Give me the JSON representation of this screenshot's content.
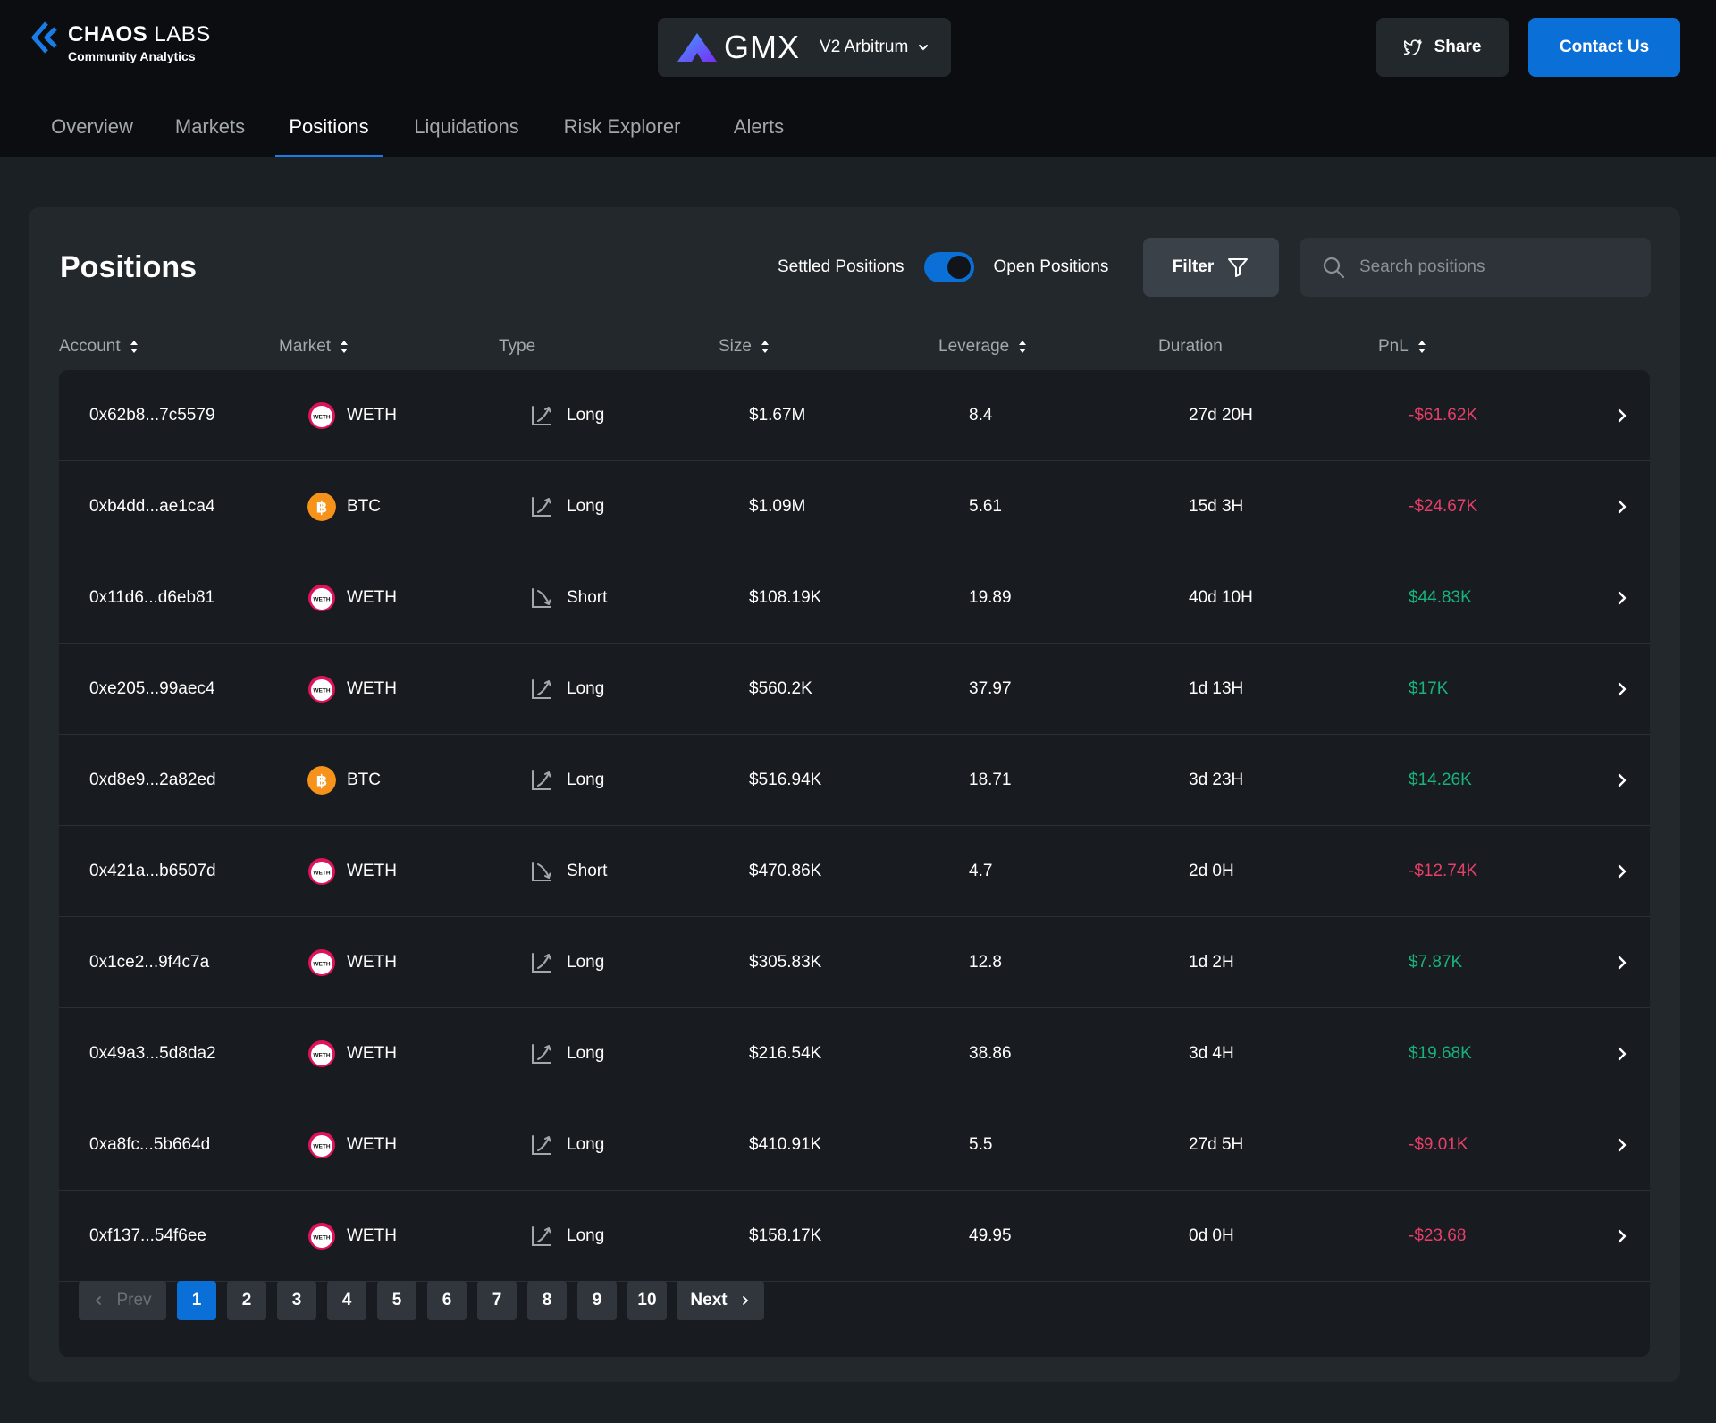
{
  "brand": {
    "title_bold": "CHAOS",
    "title_light": "LABS",
    "subtitle": "Community Analytics"
  },
  "protocol": {
    "name": "GMX",
    "network": "V2 Arbitrum"
  },
  "header": {
    "share_label": "Share",
    "contact_label": "Contact Us"
  },
  "nav": {
    "tabs": [
      {
        "label": "Overview"
      },
      {
        "label": "Markets"
      },
      {
        "label": "Positions"
      },
      {
        "label": "Liquidations"
      },
      {
        "label": "Risk Explorer"
      },
      {
        "label": "Alerts"
      }
    ],
    "active": "Positions"
  },
  "panel": {
    "title": "Positions",
    "settled_label": "Settled Positions",
    "open_label": "Open Positions",
    "toggle_on": true,
    "filter_label": "Filter",
    "search_placeholder": "Search positions"
  },
  "table": {
    "columns": [
      "Account",
      "Market",
      "Type",
      "Size",
      "Leverage",
      "Duration",
      "PnL"
    ],
    "rows": [
      {
        "account": "0x62b8...7c5579",
        "market": "WETH",
        "type": "Long",
        "size": "$1.67M",
        "leverage": "8.4",
        "duration": "27d 20H",
        "pnl": "-$61.62K",
        "pnl_sign": "neg"
      },
      {
        "account": "0xb4dd...ae1ca4",
        "market": "BTC",
        "type": "Long",
        "size": "$1.09M",
        "leverage": "5.61",
        "duration": "15d 3H",
        "pnl": "-$24.67K",
        "pnl_sign": "neg"
      },
      {
        "account": "0x11d6...d6eb81",
        "market": "WETH",
        "type": "Short",
        "size": "$108.19K",
        "leverage": "19.89",
        "duration": "40d 10H",
        "pnl": "$44.83K",
        "pnl_sign": "pos"
      },
      {
        "account": "0xe205...99aec4",
        "market": "WETH",
        "type": "Long",
        "size": "$560.2K",
        "leverage": "37.97",
        "duration": "1d 13H",
        "pnl": "$17K",
        "pnl_sign": "pos"
      },
      {
        "account": "0xd8e9...2a82ed",
        "market": "BTC",
        "type": "Long",
        "size": "$516.94K",
        "leverage": "18.71",
        "duration": "3d 23H",
        "pnl": "$14.26K",
        "pnl_sign": "pos"
      },
      {
        "account": "0x421a...b6507d",
        "market": "WETH",
        "type": "Short",
        "size": "$470.86K",
        "leverage": "4.7",
        "duration": "2d 0H",
        "pnl": "-$12.74K",
        "pnl_sign": "neg"
      },
      {
        "account": "0x1ce2...9f4c7a",
        "market": "WETH",
        "type": "Long",
        "size": "$305.83K",
        "leverage": "12.8",
        "duration": "1d 2H",
        "pnl": "$7.87K",
        "pnl_sign": "pos"
      },
      {
        "account": "0x49a3...5d8da2",
        "market": "WETH",
        "type": "Long",
        "size": "$216.54K",
        "leverage": "38.86",
        "duration": "3d 4H",
        "pnl": "$19.68K",
        "pnl_sign": "pos"
      },
      {
        "account": "0xa8fc...5b664d",
        "market": "WETH",
        "type": "Long",
        "size": "$410.91K",
        "leverage": "5.5",
        "duration": "27d 5H",
        "pnl": "-$9.01K",
        "pnl_sign": "neg"
      },
      {
        "account": "0xf137...54f6ee",
        "market": "WETH",
        "type": "Long",
        "size": "$158.17K",
        "leverage": "49.95",
        "duration": "0d 0H",
        "pnl": "-$23.68",
        "pnl_sign": "neg"
      }
    ]
  },
  "pagination": {
    "prev_label": "Prev",
    "next_label": "Next",
    "pages": [
      "1",
      "2",
      "3",
      "4",
      "5",
      "6",
      "7",
      "8",
      "9",
      "10"
    ],
    "current": "1"
  },
  "icons": {
    "weth": "weth-icon",
    "btc": "btc-icon",
    "long": "long-arrow-icon",
    "short": "short-arrow-icon",
    "row_open": "chevron-right-icon",
    "search": "search-icon",
    "filter": "filter-icon",
    "share": "twitter-icon"
  },
  "colors": {
    "accent": "#0b6fd8",
    "pnl_negative": "#e83e6a",
    "pnl_positive": "#17b37b",
    "weth": "#e0125a",
    "btc": "#f7931a"
  }
}
